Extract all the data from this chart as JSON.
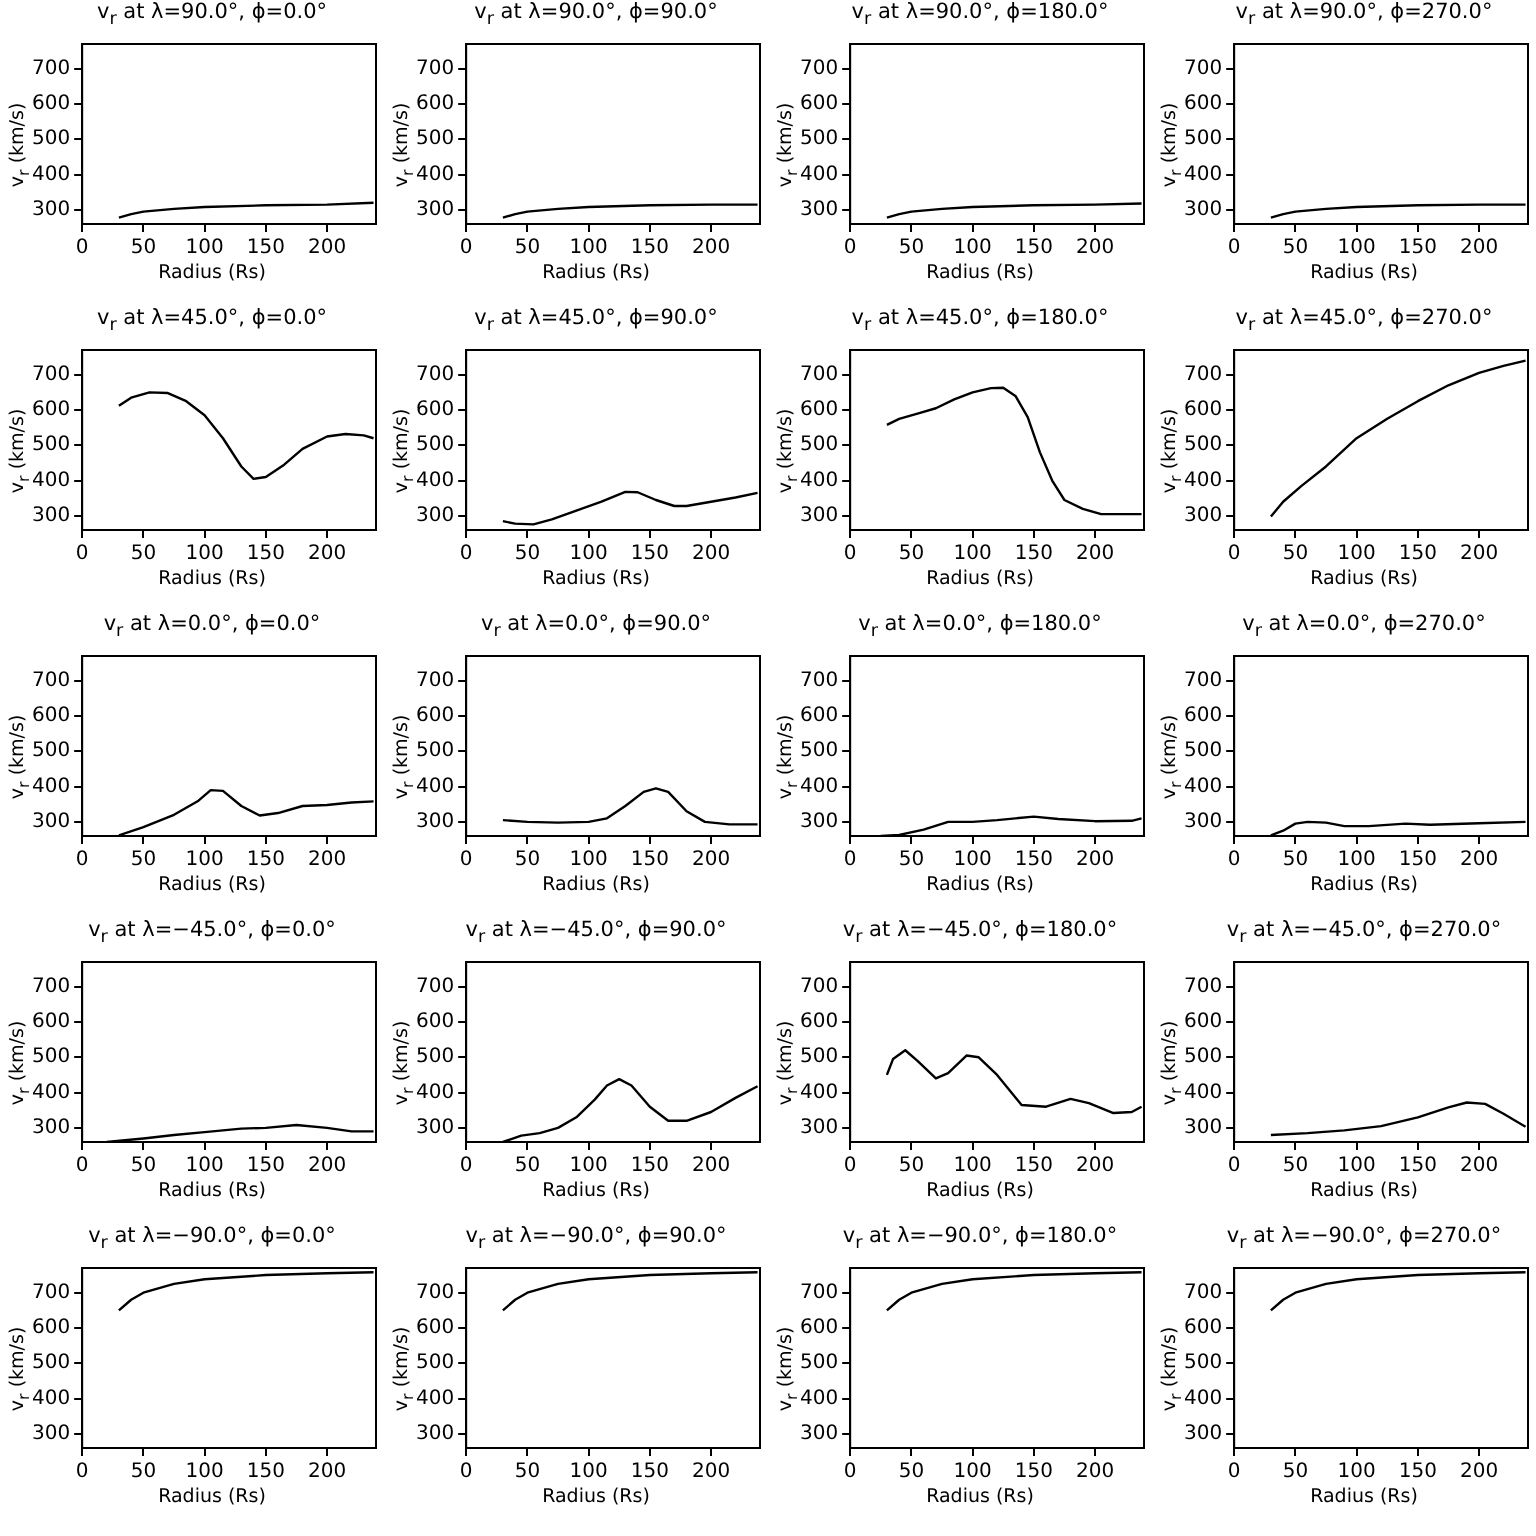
{
  "chart_data": [
    {
      "type": "line",
      "title": "v$_{r}$ at λ=90.0°, ϕ=0.0°",
      "xlabel": "Radius (Rs)",
      "ylabel": "v$_{r}$ (km/s)",
      "color": "#000000",
      "xlim": [
        0,
        240
      ],
      "ylim": [
        260,
        770
      ],
      "xticks": [
        0,
        50,
        100,
        150,
        200
      ],
      "yticks": [
        300,
        400,
        500,
        600,
        700
      ],
      "x": [
        30,
        40,
        50,
        75,
        100,
        150,
        200,
        238
      ],
      "values": [
        278,
        288,
        295,
        303,
        308,
        313,
        315,
        320
      ]
    },
    {
      "type": "line",
      "title": "v$_{r}$ at λ=90.0°, ϕ=90.0°",
      "xlabel": "Radius (Rs)",
      "ylabel": "v$_{r}$ (km/s)",
      "color": "#000000",
      "xlim": [
        0,
        240
      ],
      "ylim": [
        260,
        770
      ],
      "xticks": [
        0,
        50,
        100,
        150,
        200
      ],
      "yticks": [
        300,
        400,
        500,
        600,
        700
      ],
      "x": [
        30,
        40,
        50,
        75,
        100,
        150,
        200,
        238
      ],
      "values": [
        278,
        288,
        295,
        303,
        308,
        313,
        315,
        315
      ]
    },
    {
      "type": "line",
      "title": "v$_{r}$ at λ=90.0°, ϕ=180.0°",
      "xlabel": "Radius (Rs)",
      "ylabel": "v$_{r}$ (km/s)",
      "color": "#000000",
      "xlim": [
        0,
        240
      ],
      "ylim": [
        260,
        770
      ],
      "xticks": [
        0,
        50,
        100,
        150,
        200
      ],
      "yticks": [
        300,
        400,
        500,
        600,
        700
      ],
      "x": [
        30,
        40,
        50,
        75,
        100,
        150,
        200,
        238
      ],
      "values": [
        278,
        288,
        295,
        303,
        308,
        313,
        315,
        318
      ]
    },
    {
      "type": "line",
      "title": "v$_{r}$ at λ=90.0°, ϕ=270.0°",
      "xlabel": "Radius (Rs)",
      "ylabel": "v$_{r}$ (km/s)",
      "color": "#000000",
      "xlim": [
        0,
        240
      ],
      "ylim": [
        260,
        770
      ],
      "xticks": [
        0,
        50,
        100,
        150,
        200
      ],
      "yticks": [
        300,
        400,
        500,
        600,
        700
      ],
      "x": [
        30,
        40,
        50,
        75,
        100,
        150,
        200,
        238
      ],
      "values": [
        278,
        288,
        295,
        303,
        308,
        313,
        315,
        315
      ]
    },
    {
      "type": "line",
      "title": "v$_{r}$ at λ=45.0°, ϕ=0.0°",
      "xlabel": "Radius (Rs)",
      "ylabel": "v$_{r}$ (km/s)",
      "color": "#000000",
      "xlim": [
        0,
        240
      ],
      "ylim": [
        260,
        770
      ],
      "xticks": [
        0,
        50,
        100,
        150,
        200
      ],
      "yticks": [
        300,
        400,
        500,
        600,
        700
      ],
      "x": [
        30,
        40,
        55,
        70,
        85,
        100,
        115,
        130,
        140,
        150,
        165,
        180,
        200,
        215,
        230,
        238
      ],
      "values": [
        612,
        635,
        650,
        648,
        625,
        585,
        520,
        440,
        405,
        410,
        445,
        490,
        525,
        532,
        528,
        520
      ]
    },
    {
      "type": "line",
      "title": "v$_{r}$ at λ=45.0°, ϕ=90.0°",
      "xlabel": "Radius (Rs)",
      "ylabel": "v$_{r}$ (km/s)",
      "color": "#000000",
      "xlim": [
        0,
        240
      ],
      "ylim": [
        260,
        770
      ],
      "xticks": [
        0,
        50,
        100,
        150,
        200
      ],
      "yticks": [
        300,
        400,
        500,
        600,
        700
      ],
      "x": [
        30,
        40,
        55,
        70,
        90,
        110,
        130,
        140,
        155,
        170,
        180,
        200,
        220,
        238
      ],
      "values": [
        285,
        278,
        276,
        290,
        315,
        340,
        368,
        367,
        345,
        328,
        328,
        340,
        352,
        365
      ]
    },
    {
      "type": "line",
      "title": "v$_{r}$ at λ=45.0°, ϕ=180.0°",
      "xlabel": "Radius (Rs)",
      "ylabel": "v$_{r}$ (km/s)",
      "color": "#000000",
      "xlim": [
        0,
        240
      ],
      "ylim": [
        260,
        770
      ],
      "xticks": [
        0,
        50,
        100,
        150,
        200
      ],
      "yticks": [
        300,
        400,
        500,
        600,
        700
      ],
      "x": [
        30,
        40,
        55,
        70,
        85,
        100,
        115,
        125,
        135,
        145,
        155,
        165,
        175,
        190,
        205,
        238
      ],
      "values": [
        558,
        575,
        590,
        605,
        630,
        650,
        662,
        663,
        640,
        580,
        480,
        400,
        345,
        320,
        305,
        305
      ]
    },
    {
      "type": "line",
      "title": "v$_{r}$ at λ=45.0°, ϕ=270.0°",
      "xlabel": "Radius (Rs)",
      "ylabel": "v$_{r}$ (km/s)",
      "color": "#000000",
      "xlim": [
        0,
        240
      ],
      "ylim": [
        260,
        770
      ],
      "xticks": [
        0,
        50,
        100,
        150,
        200
      ],
      "yticks": [
        300,
        400,
        500,
        600,
        700
      ],
      "x": [
        30,
        40,
        55,
        75,
        100,
        125,
        150,
        175,
        200,
        220,
        238
      ],
      "values": [
        298,
        340,
        385,
        440,
        520,
        575,
        625,
        670,
        705,
        725,
        740
      ]
    },
    {
      "type": "line",
      "title": "v$_{r}$ at λ=0.0°, ϕ=0.0°",
      "xlabel": "Radius (Rs)",
      "ylabel": "v$_{r}$ (km/s)",
      "color": "#000000",
      "xlim": [
        0,
        240
      ],
      "ylim": [
        260,
        770
      ],
      "xticks": [
        0,
        50,
        100,
        150,
        200
      ],
      "yticks": [
        300,
        400,
        500,
        600,
        700
      ],
      "x": [
        30,
        50,
        75,
        95,
        105,
        115,
        130,
        145,
        160,
        180,
        200,
        220,
        238
      ],
      "values": [
        262,
        285,
        320,
        360,
        390,
        388,
        345,
        318,
        325,
        345,
        348,
        355,
        358
      ]
    },
    {
      "type": "line",
      "title": "v$_{r}$ at λ=0.0°, ϕ=90.0°",
      "xlabel": "Radius (Rs)",
      "ylabel": "v$_{r}$ (km/s)",
      "color": "#000000",
      "xlim": [
        0,
        240
      ],
      "ylim": [
        260,
        770
      ],
      "xticks": [
        0,
        50,
        100,
        150,
        200
      ],
      "yticks": [
        300,
        400,
        500,
        600,
        700
      ],
      "x": [
        30,
        50,
        75,
        100,
        115,
        130,
        145,
        155,
        165,
        180,
        195,
        215,
        238
      ],
      "values": [
        305,
        300,
        298,
        300,
        310,
        345,
        385,
        395,
        385,
        330,
        300,
        293,
        293
      ]
    },
    {
      "type": "line",
      "title": "v$_{r}$ at λ=0.0°, ϕ=180.0°",
      "xlabel": "Radius (Rs)",
      "ylabel": "v$_{r}$ (km/s)",
      "color": "#000000",
      "xlim": [
        0,
        240
      ],
      "ylim": [
        260,
        770
      ],
      "xticks": [
        0,
        50,
        100,
        150,
        200
      ],
      "yticks": [
        300,
        400,
        500,
        600,
        700
      ],
      "x": [
        25,
        40,
        60,
        80,
        100,
        120,
        150,
        170,
        200,
        230,
        238
      ],
      "values": [
        260,
        263,
        278,
        300,
        300,
        305,
        315,
        308,
        302,
        303,
        310
      ]
    },
    {
      "type": "line",
      "title": "v$_{r}$ at λ=0.0°, ϕ=270.0°",
      "xlabel": "Radius (Rs)",
      "ylabel": "v$_{r}$ (km/s)",
      "color": "#000000",
      "xlim": [
        0,
        240
      ],
      "ylim": [
        260,
        770
      ],
      "xticks": [
        0,
        50,
        100,
        150,
        200
      ],
      "yticks": [
        300,
        400,
        500,
        600,
        700
      ],
      "x": [
        30,
        40,
        50,
        60,
        75,
        90,
        110,
        140,
        160,
        200,
        238
      ],
      "values": [
        262,
        275,
        295,
        300,
        298,
        288,
        288,
        295,
        292,
        296,
        300
      ]
    },
    {
      "type": "line",
      "title": "v$_{r}$ at λ=−45.0°, ϕ=0.0°",
      "xlabel": "Radius (Rs)",
      "ylabel": "v$_{r}$ (km/s)",
      "color": "#000000",
      "xlim": [
        0,
        240
      ],
      "ylim": [
        260,
        770
      ],
      "xticks": [
        0,
        50,
        100,
        150,
        200
      ],
      "yticks": [
        300,
        400,
        500,
        600,
        700
      ],
      "x": [
        20,
        50,
        75,
        100,
        130,
        150,
        175,
        200,
        220,
        238
      ],
      "values": [
        260,
        270,
        280,
        288,
        298,
        300,
        308,
        300,
        290,
        290
      ]
    },
    {
      "type": "line",
      "title": "v$_{r}$ at λ=−45.0°, ϕ=90.0°",
      "xlabel": "Radius (Rs)",
      "ylabel": "v$_{r}$ (km/s)",
      "color": "#000000",
      "xlim": [
        0,
        240
      ],
      "ylim": [
        260,
        770
      ],
      "xticks": [
        0,
        50,
        100,
        150,
        200
      ],
      "yticks": [
        300,
        400,
        500,
        600,
        700
      ],
      "x": [
        30,
        45,
        60,
        75,
        90,
        105,
        115,
        125,
        135,
        150,
        165,
        180,
        200,
        220,
        238
      ],
      "values": [
        260,
        278,
        285,
        300,
        330,
        380,
        420,
        438,
        420,
        360,
        320,
        320,
        345,
        385,
        418
      ]
    },
    {
      "type": "line",
      "title": "v$_{r}$ at λ=−45.0°, ϕ=180.0°",
      "xlabel": "Radius (Rs)",
      "ylabel": "v$_{r}$ (km/s)",
      "color": "#000000",
      "xlim": [
        0,
        240
      ],
      "ylim": [
        260,
        770
      ],
      "xticks": [
        0,
        50,
        100,
        150,
        200
      ],
      "yticks": [
        300,
        400,
        500,
        600,
        700
      ],
      "x": [
        30,
        35,
        45,
        55,
        70,
        80,
        95,
        105,
        120,
        140,
        160,
        180,
        195,
        215,
        230,
        238
      ],
      "values": [
        450,
        495,
        520,
        490,
        440,
        455,
        505,
        500,
        450,
        365,
        360,
        382,
        370,
        342,
        345,
        360
      ]
    },
    {
      "type": "line",
      "title": "v$_{r}$ at λ=−45.0°, ϕ=270.0°",
      "xlabel": "Radius (Rs)",
      "ylabel": "v$_{r}$ (km/s)",
      "color": "#000000",
      "xlim": [
        0,
        240
      ],
      "ylim": [
        260,
        770
      ],
      "xticks": [
        0,
        50,
        100,
        150,
        200
      ],
      "yticks": [
        300,
        400,
        500,
        600,
        700
      ],
      "x": [
        30,
        60,
        90,
        120,
        150,
        175,
        190,
        205,
        220,
        238
      ],
      "values": [
        280,
        285,
        293,
        305,
        330,
        358,
        372,
        368,
        340,
        303
      ]
    },
    {
      "type": "line",
      "title": "v$_{r}$ at λ=−90.0°, ϕ=0.0°",
      "xlabel": "Radius (Rs)",
      "ylabel": "v$_{r}$ (km/s)",
      "color": "#000000",
      "xlim": [
        0,
        240
      ],
      "ylim": [
        260,
        770
      ],
      "xticks": [
        0,
        50,
        100,
        150,
        200
      ],
      "yticks": [
        300,
        400,
        500,
        600,
        700
      ],
      "x": [
        30,
        40,
        50,
        75,
        100,
        150,
        200,
        238
      ],
      "values": [
        650,
        680,
        700,
        725,
        738,
        750,
        755,
        758
      ]
    },
    {
      "type": "line",
      "title": "v$_{r}$ at λ=−90.0°, ϕ=90.0°",
      "xlabel": "Radius (Rs)",
      "ylabel": "v$_{r}$ (km/s)",
      "color": "#000000",
      "xlim": [
        0,
        240
      ],
      "ylim": [
        260,
        770
      ],
      "xticks": [
        0,
        50,
        100,
        150,
        200
      ],
      "yticks": [
        300,
        400,
        500,
        600,
        700
      ],
      "x": [
        30,
        40,
        50,
        75,
        100,
        150,
        200,
        238
      ],
      "values": [
        650,
        680,
        700,
        725,
        738,
        750,
        755,
        758
      ]
    },
    {
      "type": "line",
      "title": "v$_{r}$ at λ=−90.0°, ϕ=180.0°",
      "xlabel": "Radius (Rs)",
      "ylabel": "v$_{r}$ (km/s)",
      "color": "#000000",
      "xlim": [
        0,
        240
      ],
      "ylim": [
        260,
        770
      ],
      "xticks": [
        0,
        50,
        100,
        150,
        200
      ],
      "yticks": [
        300,
        400,
        500,
        600,
        700
      ],
      "x": [
        30,
        40,
        50,
        75,
        100,
        150,
        200,
        238
      ],
      "values": [
        650,
        680,
        700,
        725,
        738,
        750,
        755,
        758
      ]
    },
    {
      "type": "line",
      "title": "v$_{r}$ at λ=−90.0°, ϕ=270.0°",
      "xlabel": "Radius (Rs)",
      "ylabel": "v$_{r}$ (km/s)",
      "color": "#000000",
      "xlim": [
        0,
        240
      ],
      "ylim": [
        260,
        770
      ],
      "xticks": [
        0,
        50,
        100,
        150,
        200
      ],
      "yticks": [
        300,
        400,
        500,
        600,
        700
      ],
      "x": [
        30,
        40,
        50,
        75,
        100,
        150,
        200,
        238
      ],
      "values": [
        650,
        680,
        700,
        725,
        738,
        750,
        755,
        758
      ]
    }
  ]
}
